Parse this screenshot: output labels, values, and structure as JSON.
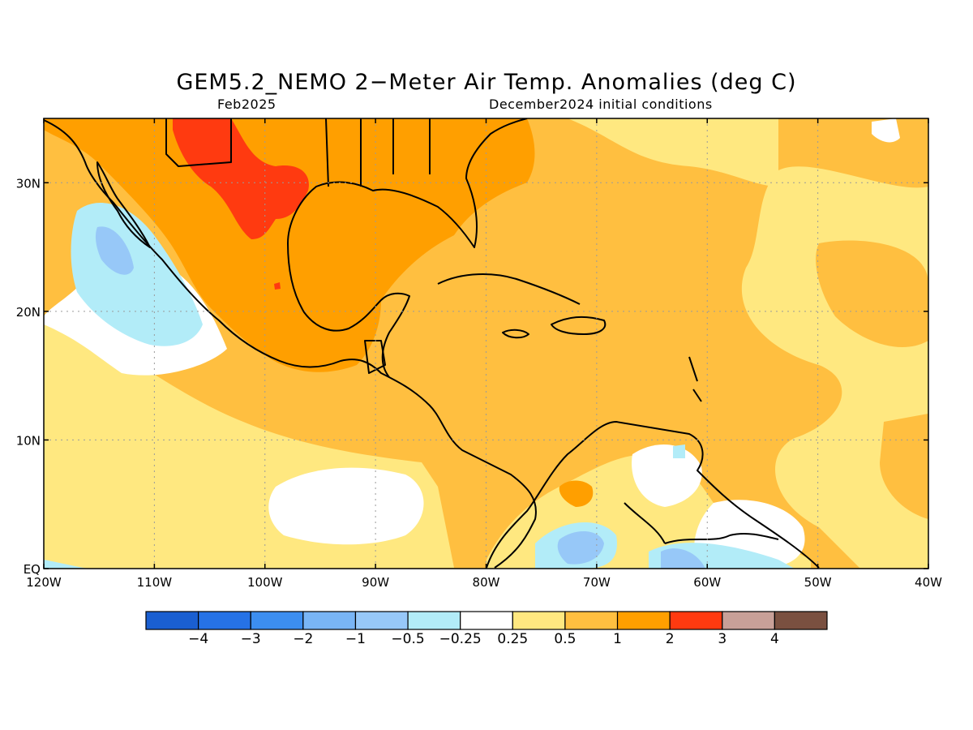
{
  "title": "GEM5.2_NEMO 2−Meter Air Temp. Anomalies (deg C)",
  "subtitle_left": "Feb2025",
  "subtitle_right": "December2024 initial conditions",
  "map": {
    "lon_range": [
      -120,
      -40
    ],
    "lat_range": [
      0,
      35
    ],
    "x_ticks": [
      {
        "lon": -120,
        "label": "120W"
      },
      {
        "lon": -110,
        "label": "110W"
      },
      {
        "lon": -100,
        "label": "100W"
      },
      {
        "lon": -90,
        "label": "90W"
      },
      {
        "lon": -80,
        "label": "80W"
      },
      {
        "lon": -70,
        "label": "70W"
      },
      {
        "lon": -60,
        "label": "60W"
      },
      {
        "lon": -50,
        "label": "50W"
      },
      {
        "lon": -40,
        "label": "40W"
      }
    ],
    "y_ticks": [
      {
        "lat": 0,
        "label": "EQ"
      },
      {
        "lat": 10,
        "label": "10N"
      },
      {
        "lat": 20,
        "label": "20N"
      },
      {
        "lat": 30,
        "label": "30N"
      }
    ],
    "grid": "dotted"
  },
  "colorbar": {
    "colors": [
      "#1a5fd1",
      "#2672e6",
      "#3c8ef0",
      "#79b5f5",
      "#97c8f8",
      "#b2ecf8",
      "#ffffff",
      "#ffe880",
      "#ffbf40",
      "#ff9f00",
      "#ff3a10",
      "#c8a098",
      "#7a5040"
    ],
    "labels": [
      "−4",
      "−3",
      "−2",
      "−1",
      "−0.5",
      "−0.25",
      "0.25",
      "0.5",
      "1",
      "2",
      "3",
      "4"
    ]
  }
}
